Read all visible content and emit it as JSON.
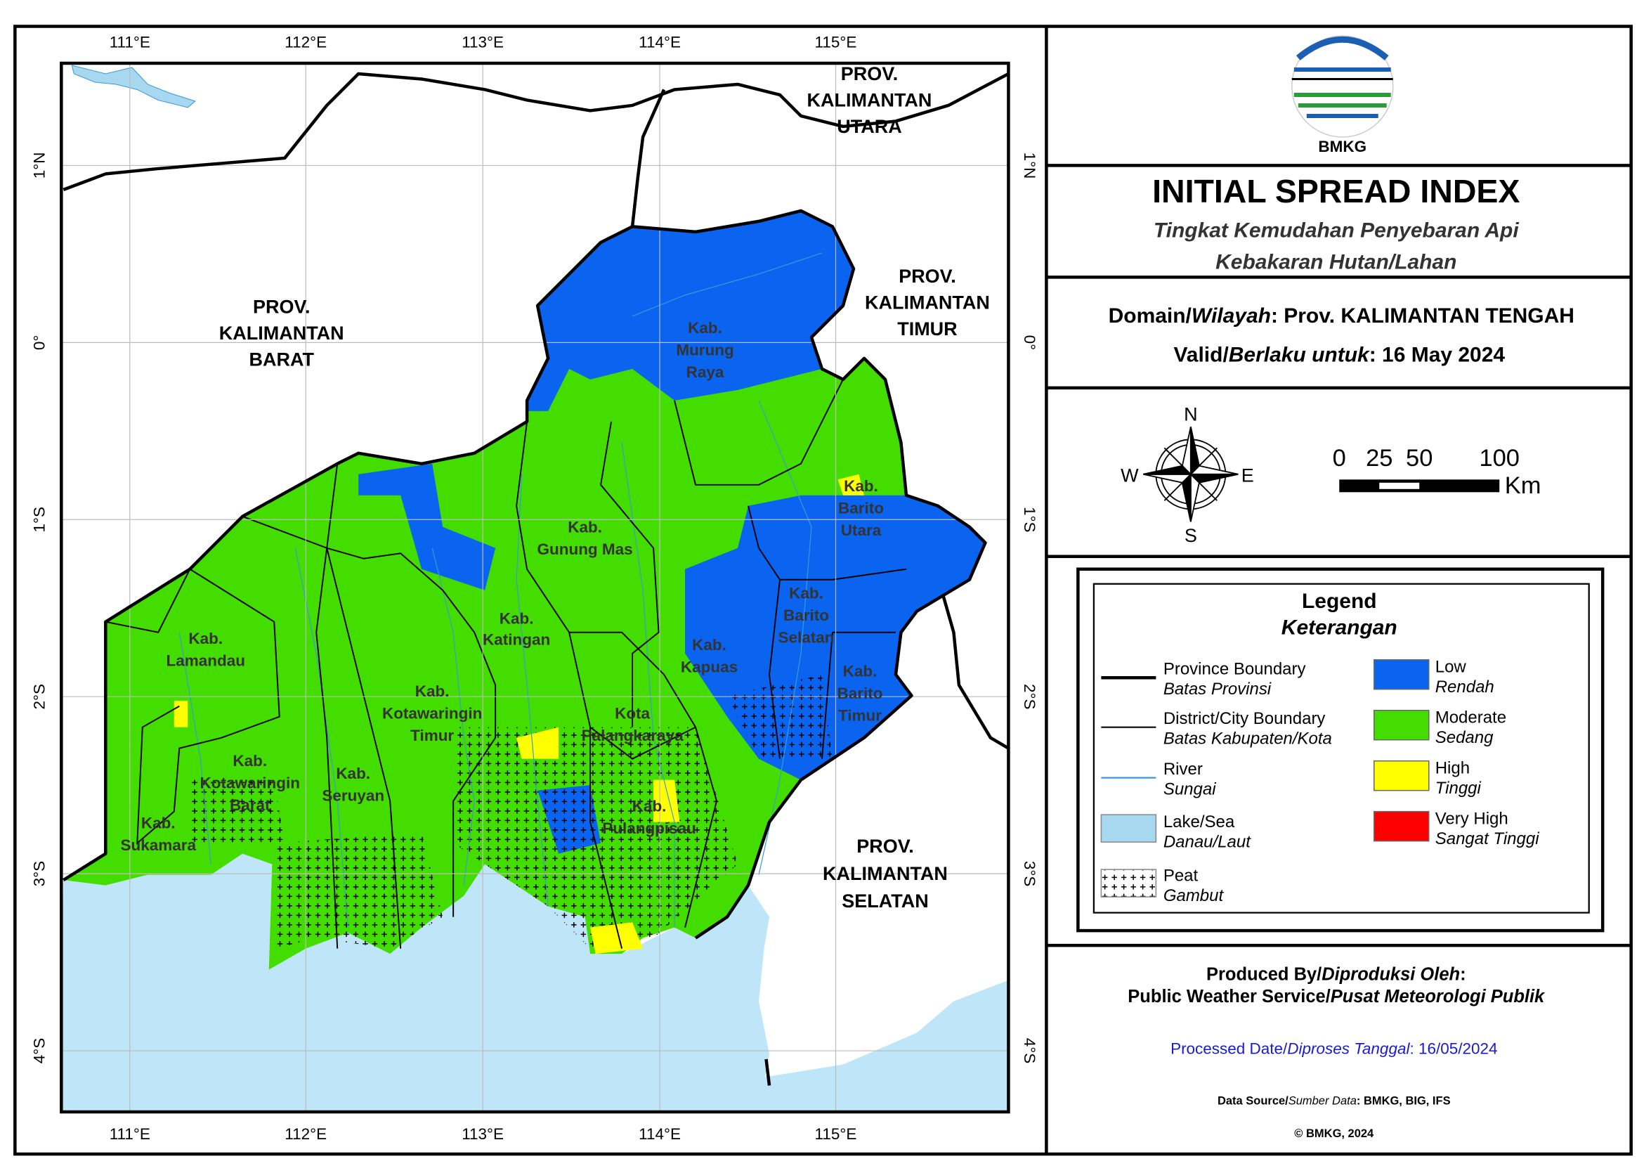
{
  "logo_text": "BMKG",
  "title": "INITIAL SPREAD INDEX",
  "subtitle": [
    "Tingkat Kemudahan Penyebaran Api",
    "Kebakaran Hutan/Lahan"
  ],
  "domain": {
    "en": "Domain/",
    "id": "Wilayah",
    "value": ": Prov. KALIMANTAN TENGAH"
  },
  "valid": {
    "en": "Valid/",
    "id": "Berlaku untuk",
    "value": ": 16 May 2024"
  },
  "compass": {
    "N": "N",
    "E": "E",
    "S": "S",
    "W": "W"
  },
  "scale": {
    "ticks": [
      0,
      25,
      50,
      100
    ],
    "unit": "Km"
  },
  "legend": {
    "title": "Legend",
    "subtitle": "Keterangan",
    "items": [
      {
        "label": "Province Boundary",
        "sublabel": "Batas Provinsi"
      },
      {
        "label": "District/City Boundary",
        "sublabel": "Batas Kabupaten/Kota"
      },
      {
        "label": "River",
        "sublabel": "Sungai"
      },
      {
        "label": "Lake/Sea",
        "sublabel": "Danau/Laut"
      },
      {
        "label": "Peat",
        "sublabel": "Gambut"
      },
      {
        "label": "Low",
        "sublabel": "Rendah",
        "color": "#0a64f0"
      },
      {
        "label": "Moderate",
        "sublabel": "Sedang",
        "color": "#44dd00"
      },
      {
        "label": "High",
        "sublabel": "Tinggi",
        "color": "#ffff00"
      },
      {
        "label": "Very High",
        "sublabel": "Sangat Tinggi",
        "color": "#ff0000"
      }
    ]
  },
  "produced": {
    "en": "Produced By/",
    "id": "Diproduksi Oleh",
    "value": ":"
  },
  "producer": {
    "en": "Public Weather Service/",
    "id": "Pusat Meteorologi Publik"
  },
  "processed": {
    "en": "Processed Date/",
    "id": "Diproses Tanggal",
    "value": ": 16/05/2024"
  },
  "source": {
    "en": "Data Source/",
    "id": "Sumber Data",
    "value": ": BMKG, BIG, IFS"
  },
  "copyright": "© BMKG, 2024",
  "map": {
    "lon_labels": [
      "111°E",
      "112°E",
      "113°E",
      "114°E",
      "115°E"
    ],
    "lat_labels": [
      "1°N",
      "0°",
      "1°S",
      "2°S",
      "3°S",
      "4°S"
    ],
    "labels": [
      [
        "PROV.",
        "KALIMANTAN",
        "UTARA"
      ],
      [
        "PROV.",
        "KALIMANTAN",
        "BARAT"
      ],
      [
        "PROV.",
        "KALIMANTAN",
        "TIMUR"
      ],
      [
        "PROV.",
        "KALIMANTAN",
        "SELATAN"
      ],
      [
        "Kab.",
        "Murung",
        "Raya"
      ],
      [
        "Kab.",
        "Barito",
        "Utara"
      ],
      [
        "Kab.",
        "Gunung Mas"
      ],
      [
        "Kab.",
        "Katingan"
      ],
      [
        "Kab.",
        "Lamandau"
      ],
      [
        "Kab.",
        "Kapuas"
      ],
      [
        "Kab.",
        "Barito",
        "Selatan"
      ],
      [
        "Kab.",
        "Barito",
        "Timur"
      ],
      [
        "Kab.",
        "Kotawaringin",
        "Timur"
      ],
      [
        "Kota",
        "Palangkaraya"
      ],
      [
        "Kab.",
        "Kotawaringin",
        "Barat"
      ],
      [
        "Kab.",
        "Seruyan"
      ],
      [
        "Kab.",
        "Pulangpisau"
      ],
      [
        "Kab.",
        "Sukamara"
      ]
    ]
  }
}
